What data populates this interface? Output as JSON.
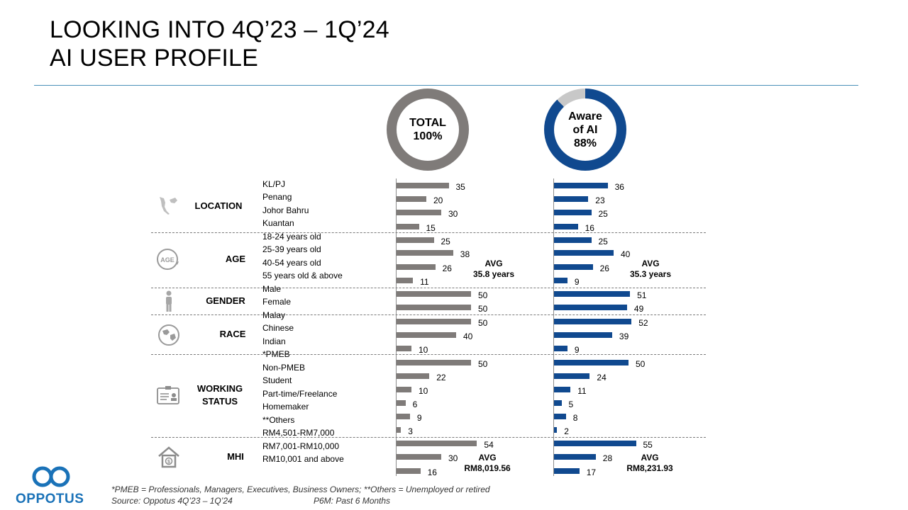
{
  "title": {
    "line1": "LOOKING INTO 4Q’23 – 1Q’24",
    "line2": "AI USER PROFILE"
  },
  "colors": {
    "total_bar": "#7f7b79",
    "aware_bar": "#10498f",
    "donut_rest": "#c8c8c8",
    "accent_rule": "#4a90b8",
    "logo": "#1a72b8"
  },
  "donuts": [
    {
      "line1": "TOTAL",
      "line2": "100%",
      "share": 100,
      "color": "#7f7b79"
    },
    {
      "line1": "Aware",
      "line2": "of AI",
      "line3": "88%",
      "share": 88,
      "color": "#10498f"
    }
  ],
  "groups": [
    {
      "name": "LOCATION",
      "name2": "",
      "icon": "malaysia-map-icon"
    },
    {
      "name": "AGE",
      "name2": "",
      "icon": "age-icon"
    },
    {
      "name": "GENDER",
      "name2": "",
      "icon": "person-icon"
    },
    {
      "name": "RACE",
      "name2": "",
      "icon": "globe-icon"
    },
    {
      "name": "WORKING",
      "name2": "STATUS",
      "icon": "id-card-icon"
    },
    {
      "name": "MHI",
      "name2": "",
      "icon": "house-money-icon"
    }
  ],
  "avg": {
    "age_total_label": "AVG",
    "age_total_value": "35.8 years",
    "age_aware_label": "AVG",
    "age_aware_value": "35.3 years",
    "mhi_total_label": "AVG",
    "mhi_total_value": "RM8,019.56",
    "mhi_aware_label": "AVG",
    "mhi_aware_value": "RM8,231.93"
  },
  "chart_data": {
    "type": "bar",
    "categories": [
      "KL/PJ",
      "Penang",
      "Johor Bahru",
      "Kuantan",
      "18-24 years old",
      "25-39 years old",
      "40-54 years old",
      "55 years old & above",
      "Male",
      "Female",
      "Malay",
      "Chinese",
      "Indian",
      "*PMEB",
      "Non-PMEB",
      "Student",
      "Part-time/Freelance",
      "Homemaker",
      "**Others",
      "RM4,501-RM7,000",
      "RM7,001-RM10,000",
      "RM10,001 and above"
    ],
    "series": [
      {
        "name": "TOTAL",
        "values": [
          35,
          20,
          30,
          15,
          25,
          38,
          26,
          11,
          50,
          50,
          50,
          40,
          10,
          50,
          22,
          10,
          6,
          9,
          3,
          54,
          30,
          16
        ]
      },
      {
        "name": "Aware of AI",
        "values": [
          36,
          23,
          25,
          16,
          25,
          40,
          26,
          9,
          51,
          49,
          52,
          39,
          9,
          50,
          24,
          11,
          5,
          8,
          2,
          55,
          28,
          17
        ]
      }
    ]
  },
  "footnotes": {
    "line1": "*PMEB = Professionals, Managers,  Executives,  Business Owners;  **Others = Unemployed  or retired",
    "source": "Source: Oppotus 4Q’23 – 1Q’24",
    "p6m": "P6M:  Past 6 Months"
  },
  "logo": {
    "text": "OPPOTUS"
  }
}
